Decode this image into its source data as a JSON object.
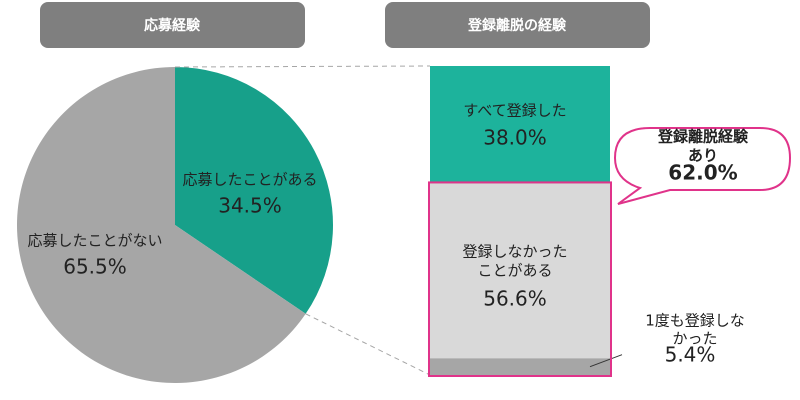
{
  "chart_data": [
    {
      "type": "pie",
      "title": "応募経験",
      "categories": [
        "応募したことがある",
        "応募したことがない"
      ],
      "values": [
        34.5,
        65.5
      ],
      "value_labels": [
        "34.5%",
        "65.5%"
      ],
      "colors": [
        "#17a08a",
        "#a6a6a6"
      ]
    },
    {
      "type": "stacked-bar",
      "title": "登録離脱の経験",
      "categories": [
        "すべて登録した",
        "登録しなかった\nことがある",
        "1度も登録しなかった"
      ],
      "values": [
        38.0,
        56.6,
        5.4
      ],
      "value_labels": [
        "38.0%",
        "56.6%",
        "5.4%"
      ],
      "colors": [
        "#1db39c",
        "#d9d9d9",
        "#a6a6a6"
      ],
      "callout": {
        "label": "登録離脱経験あり",
        "value": 62.0,
        "value_label": "62.0%",
        "color": "#e0338a"
      }
    }
  ]
}
